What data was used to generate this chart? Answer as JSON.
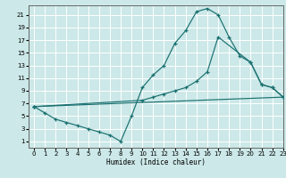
{
  "xlabel": "Humidex (Indice chaleur)",
  "bg_color": "#cce8e8",
  "grid_color": "#ffffff",
  "line_color": "#1a7070",
  "line1_x": [
    0,
    1,
    2,
    3,
    4,
    5,
    6,
    7,
    8,
    9,
    10,
    11,
    12,
    13,
    14,
    15,
    16,
    17,
    18,
    19,
    20,
    21,
    22,
    23
  ],
  "line1_y": [
    6.5,
    5.5,
    4.5,
    4.0,
    3.5,
    3.0,
    2.5,
    2.0,
    1.0,
    5.0,
    9.5,
    11.5,
    13.0,
    16.5,
    18.5,
    21.5,
    22.0,
    21.0,
    17.5,
    14.5,
    13.5,
    10.0,
    9.5,
    8.0
  ],
  "line2_x": [
    0,
    10,
    11,
    12,
    13,
    14,
    15,
    16,
    17,
    20,
    21,
    22,
    23
  ],
  "line2_y": [
    6.5,
    7.5,
    8.0,
    8.5,
    9.0,
    9.5,
    10.5,
    12.0,
    17.5,
    13.5,
    10.0,
    9.5,
    8.0
  ],
  "line3_x": [
    0,
    23
  ],
  "line3_y": [
    6.5,
    8.0
  ],
  "xlim": [
    -0.5,
    23
  ],
  "ylim": [
    0,
    22.5
  ],
  "yticks": [
    1,
    3,
    5,
    7,
    9,
    11,
    13,
    15,
    17,
    19,
    21
  ],
  "xticks": [
    0,
    1,
    2,
    3,
    4,
    5,
    6,
    7,
    8,
    9,
    10,
    11,
    12,
    13,
    14,
    15,
    16,
    17,
    18,
    19,
    20,
    21,
    22,
    23
  ]
}
